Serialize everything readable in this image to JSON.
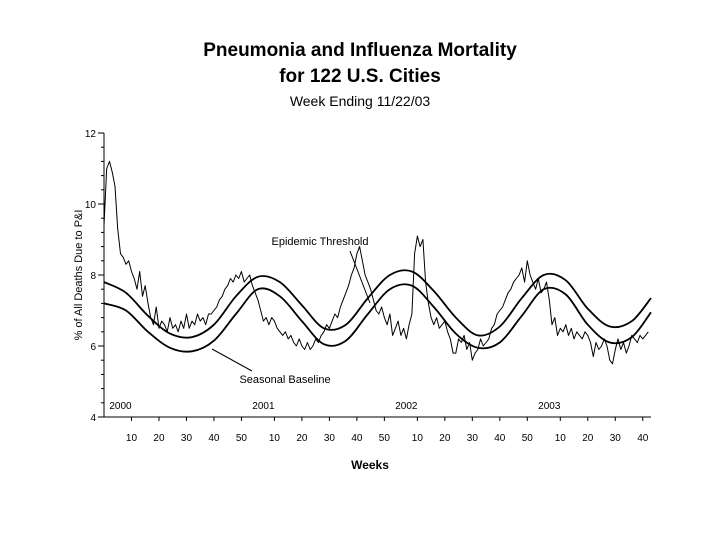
{
  "page": {
    "title_line1": "Pneumonia and Influenza Mortality",
    "title_line2": "for 122 U.S. Cities",
    "subtitle": "Week Ending 11/22/03"
  },
  "chart_data": {
    "type": "line",
    "title": "Pneumonia and Influenza Mortality for 122 U.S. Cities",
    "subtitle": "Week Ending 11/22/03",
    "xlabel": "Weeks",
    "ylabel": "% of All Deaths Due to P&I",
    "ylim": [
      4,
      12
    ],
    "y_ticks": [
      4,
      6,
      8,
      10,
      12
    ],
    "x_ticks": [
      {
        "week": 10,
        "label": "10"
      },
      {
        "week": 20,
        "label": "20"
      },
      {
        "week": 30,
        "label": "30"
      },
      {
        "week": 40,
        "label": "40"
      },
      {
        "week": 50,
        "label": "50"
      },
      {
        "week": 62,
        "label": "10"
      },
      {
        "week": 72,
        "label": "20"
      },
      {
        "week": 82,
        "label": "30"
      },
      {
        "week": 92,
        "label": "40"
      },
      {
        "week": 102,
        "label": "50"
      },
      {
        "week": 114,
        "label": "10"
      },
      {
        "week": 124,
        "label": "20"
      },
      {
        "week": 134,
        "label": "30"
      },
      {
        "week": 144,
        "label": "40"
      },
      {
        "week": 154,
        "label": "50"
      },
      {
        "week": 166,
        "label": "10"
      },
      {
        "week": 176,
        "label": "20"
      },
      {
        "week": 186,
        "label": "30"
      },
      {
        "week": 196,
        "label": "40"
      }
    ],
    "year_labels": [
      {
        "week": 6,
        "label": "2000"
      },
      {
        "week": 58,
        "label": "2001"
      },
      {
        "week": 110,
        "label": "2002"
      },
      {
        "week": 162,
        "label": "2003"
      }
    ],
    "xlim": [
      0,
      199
    ],
    "annotations": [
      "Epidemic Threshold",
      "Seasonal Baseline"
    ],
    "series": [
      {
        "values": [
          [
            0,
            9.4
          ],
          [
            1,
            11.0
          ],
          [
            2,
            11.2
          ],
          [
            3,
            10.9
          ],
          [
            4,
            10.5
          ],
          [
            5,
            9.3
          ],
          [
            6,
            8.6
          ],
          [
            7,
            8.5
          ],
          [
            8,
            8.3
          ],
          [
            9,
            8.4
          ],
          [
            10,
            8.1
          ],
          [
            11,
            7.9
          ],
          [
            12,
            7.6
          ],
          [
            13,
            8.1
          ],
          [
            14,
            7.4
          ],
          [
            15,
            7.7
          ],
          [
            16,
            7.2
          ],
          [
            17,
            6.8
          ],
          [
            18,
            6.6
          ],
          [
            19,
            7.1
          ],
          [
            20,
            6.5
          ],
          [
            21,
            6.7
          ],
          [
            22,
            6.6
          ],
          [
            23,
            6.4
          ],
          [
            24,
            6.8
          ],
          [
            25,
            6.5
          ],
          [
            26,
            6.6
          ],
          [
            27,
            6.4
          ],
          [
            28,
            6.7
          ],
          [
            29,
            6.5
          ],
          [
            30,
            6.9
          ],
          [
            31,
            6.5
          ],
          [
            32,
            6.7
          ],
          [
            33,
            6.6
          ],
          [
            34,
            6.9
          ],
          [
            35,
            6.7
          ],
          [
            36,
            6.8
          ],
          [
            37,
            6.6
          ],
          [
            38,
            6.9
          ],
          [
            39,
            6.9
          ],
          [
            40,
            7.0
          ],
          [
            41,
            7.1
          ],
          [
            42,
            7.3
          ],
          [
            43,
            7.4
          ],
          [
            44,
            7.6
          ],
          [
            45,
            7.7
          ],
          [
            46,
            7.9
          ],
          [
            47,
            7.8
          ],
          [
            48,
            8.0
          ],
          [
            49,
            7.9
          ],
          [
            50,
            8.1
          ],
          [
            51,
            7.8
          ],
          [
            52,
            7.9
          ],
          [
            53,
            8.0
          ],
          [
            54,
            7.7
          ],
          [
            55,
            7.5
          ],
          [
            56,
            7.3
          ],
          [
            57,
            7.0
          ],
          [
            58,
            6.7
          ],
          [
            59,
            6.8
          ],
          [
            60,
            6.6
          ],
          [
            61,
            6.8
          ],
          [
            62,
            6.7
          ],
          [
            63,
            6.5
          ],
          [
            64,
            6.4
          ],
          [
            65,
            6.3
          ],
          [
            66,
            6.4
          ],
          [
            67,
            6.2
          ],
          [
            68,
            6.3
          ],
          [
            69,
            6.1
          ],
          [
            70,
            6.0
          ],
          [
            71,
            6.2
          ],
          [
            72,
            6.0
          ],
          [
            73,
            5.9
          ],
          [
            74,
            6.1
          ],
          [
            75,
            5.9
          ],
          [
            76,
            6.0
          ],
          [
            77,
            6.2
          ],
          [
            78,
            6.1
          ],
          [
            79,
            6.3
          ],
          [
            80,
            6.4
          ],
          [
            81,
            6.6
          ],
          [
            82,
            6.5
          ],
          [
            83,
            6.7
          ],
          [
            84,
            6.9
          ],
          [
            85,
            6.8
          ],
          [
            86,
            7.1
          ],
          [
            87,
            7.3
          ],
          [
            88,
            7.5
          ],
          [
            89,
            7.7
          ],
          [
            90,
            8.0
          ],
          [
            91,
            8.2
          ],
          [
            92,
            8.6
          ],
          [
            93,
            8.8
          ],
          [
            94,
            8.4
          ],
          [
            95,
            8.0
          ],
          [
            96,
            7.8
          ],
          [
            97,
            7.6
          ],
          [
            98,
            7.3
          ],
          [
            99,
            7.0
          ],
          [
            100,
            6.9
          ],
          [
            101,
            7.1
          ],
          [
            102,
            6.8
          ],
          [
            103,
            6.6
          ],
          [
            104,
            6.9
          ],
          [
            105,
            6.3
          ],
          [
            106,
            6.5
          ],
          [
            107,
            6.7
          ],
          [
            108,
            6.3
          ],
          [
            109,
            6.5
          ],
          [
            110,
            6.2
          ],
          [
            111,
            6.6
          ],
          [
            112,
            6.9
          ],
          [
            113,
            8.6
          ],
          [
            114,
            9.1
          ],
          [
            115,
            8.8
          ],
          [
            116,
            9.0
          ],
          [
            117,
            7.8
          ],
          [
            118,
            7.2
          ],
          [
            119,
            6.8
          ],
          [
            120,
            6.6
          ],
          [
            121,
            6.8
          ],
          [
            122,
            6.5
          ],
          [
            123,
            6.6
          ],
          [
            124,
            6.7
          ],
          [
            125,
            6.4
          ],
          [
            126,
            6.2
          ],
          [
            127,
            5.8
          ],
          [
            128,
            5.8
          ],
          [
            129,
            6.2
          ],
          [
            130,
            6.1
          ],
          [
            131,
            6.3
          ],
          [
            132,
            5.9
          ],
          [
            133,
            6.1
          ],
          [
            134,
            5.6
          ],
          [
            135,
            5.8
          ],
          [
            136,
            5.9
          ],
          [
            137,
            6.2
          ],
          [
            138,
            6.0
          ],
          [
            139,
            6.1
          ],
          [
            140,
            6.2
          ],
          [
            141,
            6.5
          ],
          [
            142,
            6.6
          ],
          [
            143,
            6.9
          ],
          [
            144,
            7.0
          ],
          [
            145,
            7.1
          ],
          [
            146,
            7.3
          ],
          [
            147,
            7.5
          ],
          [
            148,
            7.6
          ],
          [
            149,
            7.8
          ],
          [
            150,
            7.9
          ],
          [
            151,
            8.0
          ],
          [
            152,
            8.2
          ],
          [
            153,
            7.8
          ],
          [
            154,
            8.4
          ],
          [
            155,
            8.0
          ],
          [
            156,
            7.8
          ],
          [
            157,
            7.6
          ],
          [
            158,
            7.9
          ],
          [
            159,
            7.5
          ],
          [
            160,
            7.6
          ],
          [
            161,
            7.8
          ],
          [
            162,
            7.3
          ],
          [
            163,
            6.6
          ],
          [
            164,
            6.8
          ],
          [
            165,
            6.3
          ],
          [
            166,
            6.5
          ],
          [
            167,
            6.4
          ],
          [
            168,
            6.6
          ],
          [
            169,
            6.3
          ],
          [
            170,
            6.5
          ],
          [
            171,
            6.2
          ],
          [
            172,
            6.4
          ],
          [
            173,
            6.3
          ],
          [
            174,
            6.2
          ],
          [
            175,
            6.4
          ],
          [
            176,
            6.3
          ],
          [
            177,
            6.1
          ],
          [
            178,
            5.7
          ],
          [
            179,
            6.1
          ],
          [
            180,
            5.9
          ],
          [
            181,
            6.0
          ],
          [
            182,
            6.2
          ],
          [
            183,
            6.0
          ],
          [
            184,
            5.6
          ],
          [
            185,
            5.5
          ],
          [
            186,
            5.9
          ],
          [
            187,
            6.2
          ],
          [
            188,
            5.9
          ],
          [
            189,
            6.1
          ],
          [
            190,
            5.8
          ],
          [
            191,
            6.0
          ],
          [
            192,
            6.3
          ],
          [
            193,
            6.2
          ],
          [
            194,
            6.1
          ],
          [
            195,
            6.3
          ],
          [
            196,
            6.2
          ],
          [
            197,
            6.3
          ],
          [
            198,
            6.4
          ]
        ]
      },
      {
        "name": "Epidemic Threshold",
        "values": [
          [
            0,
            7.8
          ],
          [
            8,
            7.5
          ],
          [
            16,
            6.85
          ],
          [
            24,
            6.35
          ],
          [
            32,
            6.25
          ],
          [
            40,
            6.6
          ],
          [
            48,
            7.4
          ],
          [
            56,
            7.95
          ],
          [
            64,
            7.8
          ],
          [
            72,
            7.15
          ],
          [
            80,
            6.5
          ],
          [
            88,
            6.6
          ],
          [
            96,
            7.35
          ],
          [
            104,
            8.0
          ],
          [
            112,
            8.1
          ],
          [
            120,
            7.55
          ],
          [
            128,
            6.8
          ],
          [
            136,
            6.3
          ],
          [
            144,
            6.55
          ],
          [
            152,
            7.35
          ],
          [
            160,
            8.0
          ],
          [
            168,
            7.85
          ],
          [
            176,
            7.05
          ],
          [
            184,
            6.55
          ],
          [
            192,
            6.7
          ],
          [
            199,
            7.35
          ]
        ]
      },
      {
        "name": "Seasonal Baseline",
        "values": [
          [
            0,
            7.2
          ],
          [
            8,
            7.0
          ],
          [
            16,
            6.4
          ],
          [
            24,
            5.95
          ],
          [
            32,
            5.85
          ],
          [
            40,
            6.15
          ],
          [
            48,
            6.9
          ],
          [
            56,
            7.6
          ],
          [
            64,
            7.4
          ],
          [
            72,
            6.7
          ],
          [
            80,
            6.05
          ],
          [
            88,
            6.15
          ],
          [
            96,
            6.9
          ],
          [
            104,
            7.6
          ],
          [
            112,
            7.7
          ],
          [
            120,
            7.1
          ],
          [
            128,
            6.35
          ],
          [
            136,
            5.95
          ],
          [
            144,
            6.1
          ],
          [
            152,
            6.85
          ],
          [
            160,
            7.6
          ],
          [
            168,
            7.45
          ],
          [
            176,
            6.6
          ],
          [
            184,
            6.1
          ],
          [
            192,
            6.25
          ],
          [
            199,
            6.95
          ]
        ]
      }
    ]
  }
}
